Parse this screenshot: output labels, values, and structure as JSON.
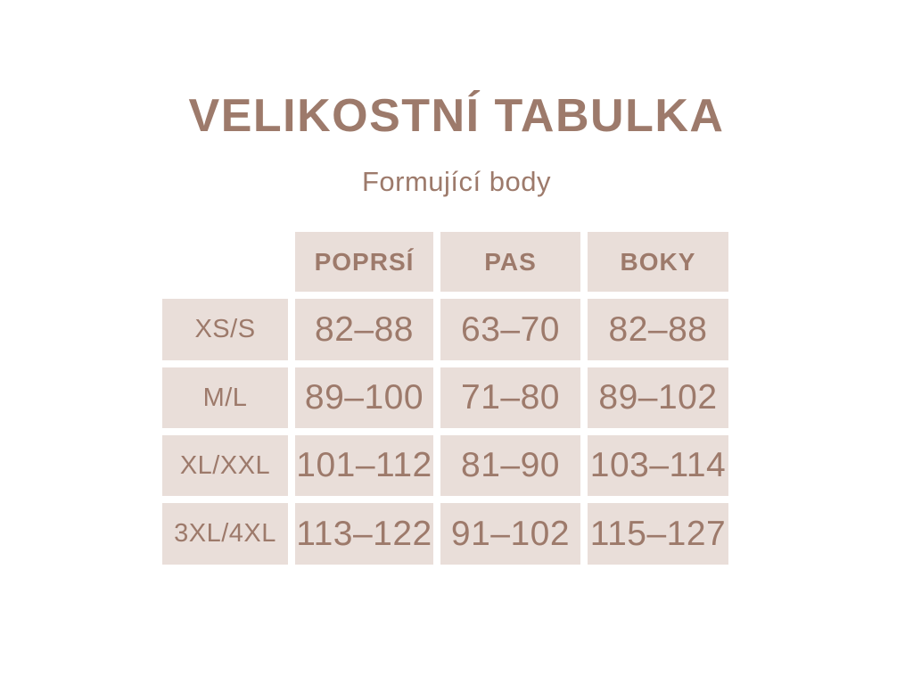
{
  "header": {
    "title": "VELIKOSTNÍ TABULKA",
    "subtitle": "Formující body"
  },
  "colors": {
    "text_brown": "#9d7a6b",
    "cell_background": "#e9ded9",
    "page_background": "#ffffff"
  },
  "chart_data": {
    "type": "table",
    "title": "VELIKOSTNÍ TABULKA",
    "subtitle": "Formující body",
    "columns": [
      "POPRSÍ",
      "PAS",
      "BOKY"
    ],
    "rows": [
      {
        "label": "XS/S",
        "values": [
          "82–88",
          "63–70",
          "82–88"
        ]
      },
      {
        "label": "M/L",
        "values": [
          "89–100",
          "71–80",
          "89–102"
        ]
      },
      {
        "label": "XL/XXL",
        "values": [
          "101–112",
          "81–90",
          "103–114"
        ]
      },
      {
        "label": "3XL/4XL",
        "values": [
          "113–122",
          "91–102",
          "115–127"
        ]
      }
    ]
  }
}
